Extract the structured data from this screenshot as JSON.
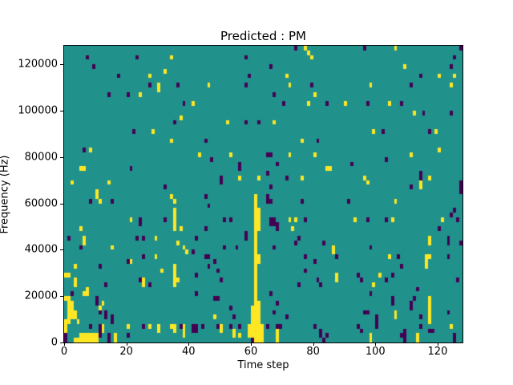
{
  "figure": {
    "title": "Predicted : PM",
    "xlabel": "Time step",
    "ylabel": "Frequency (Hz)"
  },
  "chart_data": {
    "type": "heatmap",
    "title": "Predicted : PM",
    "xlabel": "Time step",
    "ylabel": "Frequency (Hz)",
    "xlim": [
      0,
      128
    ],
    "ylim": [
      0,
      128000
    ],
    "x_ticks": [
      0,
      20,
      40,
      60,
      80,
      100,
      120
    ],
    "y_ticks": [
      0,
      20000,
      40000,
      60000,
      80000,
      100000,
      120000
    ],
    "grid": {
      "cols": 128,
      "rows": 64,
      "legend": "cells are [col,row], row 0 at bottom; value classes: high=yellow, mid=background teal, low=dark purple"
    },
    "colors": {
      "figure_bg": "#ffffff",
      "background": "#21918c",
      "high": "#fde725",
      "low": "#440154",
      "axis": "#000000",
      "text": "#000000"
    },
    "cells_high": [
      [
        34,
        61
      ],
      [
        32,
        58
      ],
      [
        27,
        57
      ],
      [
        30,
        55
      ],
      [
        30,
        54
      ],
      [
        24,
        53
      ],
      [
        41,
        51
      ],
      [
        37,
        48
      ],
      [
        28,
        45
      ],
      [
        34,
        43
      ],
      [
        8,
        41
      ],
      [
        5,
        37
      ],
      [
        6,
        37
      ],
      [
        2,
        34
      ],
      [
        14,
        34
      ],
      [
        10,
        32
      ],
      [
        77,
        63
      ],
      [
        78,
        62
      ],
      [
        79,
        61
      ],
      [
        71,
        57
      ],
      [
        46,
        55
      ],
      [
        72,
        55
      ],
      [
        80,
        53
      ],
      [
        78,
        51
      ],
      [
        52,
        47
      ],
      [
        67,
        47
      ],
      [
        76,
        43
      ],
      [
        43,
        40
      ],
      [
        53,
        40
      ],
      [
        72,
        40
      ],
      [
        80,
        40
      ],
      [
        84,
        37
      ],
      [
        85,
        37
      ],
      [
        56,
        35
      ],
      [
        62,
        35
      ],
      [
        76,
        35
      ],
      [
        106,
        63
      ],
      [
        109,
        59
      ],
      [
        120,
        57
      ],
      [
        125,
        57
      ],
      [
        98,
        55
      ],
      [
        124,
        55
      ],
      [
        90,
        51
      ],
      [
        104,
        51
      ],
      [
        112,
        49
      ],
      [
        99,
        45
      ],
      [
        119,
        45
      ],
      [
        120,
        41
      ],
      [
        111,
        40
      ],
      [
        96,
        35
      ],
      [
        117,
        35
      ],
      [
        97,
        34
      ],
      [
        114,
        34
      ],
      [
        114,
        33
      ],
      [
        10,
        31
      ],
      [
        11,
        30
      ],
      [
        34,
        31
      ],
      [
        35,
        30
      ],
      [
        35,
        28
      ],
      [
        35,
        27
      ],
      [
        35,
        26
      ],
      [
        35,
        25
      ],
      [
        35,
        24
      ],
      [
        37,
        24
      ],
      [
        21,
        26
      ],
      [
        5,
        24
      ],
      [
        6,
        22
      ],
      [
        6,
        21
      ],
      [
        29,
        22
      ],
      [
        36,
        21
      ],
      [
        15,
        20
      ],
      [
        38,
        20
      ],
      [
        39,
        19
      ],
      [
        29,
        18
      ],
      [
        21,
        17
      ],
      [
        3,
        16
      ],
      [
        31,
        15
      ],
      [
        35,
        16
      ],
      [
        35,
        15
      ],
      [
        35,
        14
      ],
      [
        35,
        13
      ],
      [
        35,
        12
      ],
      [
        36,
        13
      ],
      [
        1,
        14
      ],
      [
        0,
        14
      ],
      [
        25,
        13
      ],
      [
        25,
        12
      ],
      [
        3,
        13
      ],
      [
        3,
        12
      ],
      [
        7,
        11
      ],
      [
        7,
        10
      ],
      [
        6,
        10
      ],
      [
        12,
        8
      ],
      [
        11,
        7
      ],
      [
        0,
        9
      ],
      [
        1,
        9
      ],
      [
        1,
        8
      ],
      [
        2,
        8
      ],
      [
        1,
        7
      ],
      [
        2,
        7
      ],
      [
        1,
        6
      ],
      [
        2,
        6
      ],
      [
        1,
        5
      ],
      [
        2,
        5
      ],
      [
        0,
        4
      ],
      [
        1,
        4
      ],
      [
        3,
        6
      ],
      [
        3,
        5
      ],
      [
        4,
        4
      ],
      [
        0,
        3
      ],
      [
        0,
        2
      ],
      [
        12,
        3
      ],
      [
        12,
        2
      ],
      [
        16,
        0
      ],
      [
        16,
        1
      ],
      [
        20,
        3
      ],
      [
        27,
        3
      ],
      [
        30,
        3
      ],
      [
        30,
        2
      ],
      [
        34,
        3
      ],
      [
        35,
        3
      ],
      [
        35,
        2
      ],
      [
        38,
        1
      ],
      [
        38,
        2
      ],
      [
        38,
        3
      ],
      [
        50,
        2
      ],
      [
        50,
        3
      ],
      [
        54,
        1
      ],
      [
        54,
        2
      ],
      [
        3,
        0
      ],
      [
        4,
        0
      ],
      [
        5,
        0
      ],
      [
        5,
        1
      ],
      [
        6,
        0
      ],
      [
        6,
        1
      ],
      [
        7,
        0
      ],
      [
        7,
        1
      ],
      [
        8,
        0
      ],
      [
        8,
        1
      ],
      [
        9,
        0
      ],
      [
        9,
        1
      ],
      [
        10,
        0
      ],
      [
        10,
        1
      ],
      [
        61,
        1
      ],
      [
        61,
        2
      ],
      [
        61,
        3
      ],
      [
        61,
        4
      ],
      [
        61,
        5
      ],
      [
        61,
        6
      ],
      [
        61,
        7
      ],
      [
        61,
        8
      ],
      [
        61,
        9
      ],
      [
        61,
        10
      ],
      [
        61,
        11
      ],
      [
        61,
        12
      ],
      [
        61,
        13
      ],
      [
        61,
        14
      ],
      [
        61,
        15
      ],
      [
        61,
        16
      ],
      [
        61,
        17
      ],
      [
        61,
        18
      ],
      [
        61,
        19
      ],
      [
        61,
        20
      ],
      [
        61,
        21
      ],
      [
        61,
        22
      ],
      [
        61,
        23
      ],
      [
        61,
        24
      ],
      [
        61,
        25
      ],
      [
        61,
        26
      ],
      [
        61,
        27
      ],
      [
        61,
        28
      ],
      [
        61,
        29
      ],
      [
        61,
        30
      ],
      [
        61,
        31
      ],
      [
        62,
        0
      ],
      [
        62,
        1
      ],
      [
        62,
        2
      ],
      [
        62,
        3
      ],
      [
        62,
        4
      ],
      [
        62,
        5
      ],
      [
        62,
        6
      ],
      [
        62,
        7
      ],
      [
        62,
        8
      ],
      [
        62,
        17
      ],
      [
        62,
        18
      ],
      [
        62,
        24
      ],
      [
        62,
        25
      ],
      [
        62,
        26
      ],
      [
        62,
        27
      ],
      [
        62,
        28
      ],
      [
        60,
        1
      ],
      [
        60,
        2
      ],
      [
        60,
        3
      ],
      [
        60,
        4
      ],
      [
        60,
        5
      ],
      [
        60,
        6
      ],
      [
        60,
        7
      ],
      [
        59,
        1
      ],
      [
        59,
        2
      ],
      [
        59,
        3
      ],
      [
        61,
        0
      ],
      [
        63,
        0
      ],
      [
        63,
        1
      ],
      [
        63,
        2
      ],
      [
        63,
        3
      ],
      [
        72,
        26
      ],
      [
        74,
        26
      ],
      [
        73,
        24
      ],
      [
        48,
        5
      ],
      [
        56,
        1
      ],
      [
        68,
        0
      ],
      [
        68,
        1
      ],
      [
        68,
        2
      ],
      [
        98,
        0
      ],
      [
        98,
        1
      ],
      [
        113,
        0
      ],
      [
        113,
        1
      ],
      [
        124,
        3
      ],
      [
        106,
        30
      ],
      [
        93,
        26
      ],
      [
        105,
        26
      ],
      [
        121,
        26
      ],
      [
        117,
        22
      ],
      [
        117,
        21
      ],
      [
        86,
        20
      ],
      [
        86,
        19
      ],
      [
        104,
        18
      ],
      [
        116,
        18
      ],
      [
        116,
        17
      ],
      [
        116,
        16
      ],
      [
        117,
        18
      ],
      [
        87,
        14
      ],
      [
        87,
        13
      ],
      [
        101,
        14
      ],
      [
        99,
        12
      ],
      [
        117,
        9
      ],
      [
        117,
        8
      ],
      [
        117,
        7
      ],
      [
        117,
        6
      ],
      [
        117,
        5
      ],
      [
        117,
        4
      ],
      [
        106,
        6
      ],
      [
        106,
        5
      ]
    ],
    "cells_low": [
      [
        7,
        61
      ],
      [
        9,
        59
      ],
      [
        23,
        61
      ],
      [
        17,
        57
      ],
      [
        27,
        55
      ],
      [
        36,
        55
      ],
      [
        14,
        53
      ],
      [
        20,
        53
      ],
      [
        38,
        51
      ],
      [
        35,
        47
      ],
      [
        22,
        45
      ],
      [
        6,
        41
      ],
      [
        21,
        37
      ],
      [
        32,
        33
      ],
      [
        74,
        63
      ],
      [
        58,
        61
      ],
      [
        66,
        59
      ],
      [
        59,
        57
      ],
      [
        58,
        55
      ],
      [
        79,
        55
      ],
      [
        67,
        53
      ],
      [
        70,
        51
      ],
      [
        84,
        51
      ],
      [
        58,
        47
      ],
      [
        62,
        47
      ],
      [
        45,
        43
      ],
      [
        81,
        43
      ],
      [
        47,
        39
      ],
      [
        65,
        40
      ],
      [
        66,
        40
      ],
      [
        56,
        38
      ],
      [
        56,
        37
      ],
      [
        68,
        38
      ],
      [
        65,
        36
      ],
      [
        71,
        35
      ],
      [
        50,
        35
      ],
      [
        50,
        34
      ],
      [
        66,
        33
      ],
      [
        96,
        63
      ],
      [
        127,
        63
      ],
      [
        125,
        61
      ],
      [
        124,
        59
      ],
      [
        114,
        57
      ],
      [
        111,
        55
      ],
      [
        97,
        51
      ],
      [
        108,
        51
      ],
      [
        115,
        49
      ],
      [
        124,
        49
      ],
      [
        102,
        45
      ],
      [
        117,
        45
      ],
      [
        103,
        39
      ],
      [
        92,
        38
      ],
      [
        114,
        35
      ],
      [
        114,
        36
      ],
      [
        111,
        33
      ],
      [
        127,
        34
      ],
      [
        127,
        33
      ],
      [
        127,
        32
      ],
      [
        8,
        30
      ],
      [
        15,
        30
      ],
      [
        24,
        26
      ],
      [
        32,
        26
      ],
      [
        1,
        22
      ],
      [
        23,
        22
      ],
      [
        25,
        22
      ],
      [
        24,
        25
      ],
      [
        5,
        20
      ],
      [
        41,
        19
      ],
      [
        25,
        18
      ],
      [
        20,
        17
      ],
      [
        11,
        16
      ],
      [
        24,
        13
      ],
      [
        27,
        12
      ],
      [
        13,
        12
      ],
      [
        2,
        10
      ],
      [
        10,
        9
      ],
      [
        10,
        8
      ],
      [
        11,
        6
      ],
      [
        13,
        6
      ],
      [
        13,
        5
      ],
      [
        15,
        5
      ],
      [
        15,
        4
      ],
      [
        8,
        3
      ],
      [
        11,
        3
      ],
      [
        11,
        2
      ],
      [
        11,
        1
      ],
      [
        14,
        0
      ],
      [
        14,
        1
      ],
      [
        20,
        1
      ],
      [
        25,
        3
      ],
      [
        37,
        3
      ],
      [
        41,
        2
      ],
      [
        41,
        3
      ],
      [
        42,
        2
      ],
      [
        42,
        3
      ],
      [
        44,
        3
      ],
      [
        49,
        3
      ],
      [
        56,
        3
      ],
      [
        60,
        0
      ],
      [
        0,
        0
      ],
      [
        0,
        1
      ],
      [
        45,
        31
      ],
      [
        65,
        31
      ],
      [
        65,
        30
      ],
      [
        66,
        30
      ],
      [
        46,
        29
      ],
      [
        76,
        30
      ],
      [
        51,
        26
      ],
      [
        53,
        26
      ],
      [
        66,
        26
      ],
      [
        66,
        25
      ],
      [
        67,
        26
      ],
      [
        67,
        25
      ],
      [
        68,
        25
      ],
      [
        68,
        24
      ],
      [
        77,
        26
      ],
      [
        45,
        24
      ],
      [
        58,
        23
      ],
      [
        58,
        22
      ],
      [
        42,
        22
      ],
      [
        51,
        20
      ],
      [
        55,
        20
      ],
      [
        67,
        20
      ],
      [
        75,
        22
      ],
      [
        74,
        21
      ],
      [
        83,
        21
      ],
      [
        45,
        18
      ],
      [
        46,
        18
      ],
      [
        48,
        17
      ],
      [
        46,
        16
      ],
      [
        77,
        18
      ],
      [
        80,
        17
      ],
      [
        49,
        15
      ],
      [
        42,
        14
      ],
      [
        77,
        15
      ],
      [
        81,
        13
      ],
      [
        50,
        13
      ],
      [
        75,
        12
      ],
      [
        82,
        12
      ],
      [
        42,
        10
      ],
      [
        48,
        9
      ],
      [
        49,
        9
      ],
      [
        66,
        10
      ],
      [
        68,
        8
      ],
      [
        53,
        7
      ],
      [
        54,
        5
      ],
      [
        53,
        3
      ],
      [
        67,
        6
      ],
      [
        71,
        5
      ],
      [
        68,
        3
      ],
      [
        82,
        1
      ],
      [
        82,
        2
      ],
      [
        84,
        1
      ],
      [
        83,
        0
      ],
      [
        65,
        3
      ],
      [
        69,
        3
      ],
      [
        80,
        3
      ],
      [
        91,
        30
      ],
      [
        125,
        28
      ],
      [
        124,
        27
      ],
      [
        126,
        26
      ],
      [
        97,
        26
      ],
      [
        103,
        26
      ],
      [
        120,
        24
      ],
      [
        123,
        22
      ],
      [
        123,
        21
      ],
      [
        127,
        21
      ],
      [
        98,
        20
      ],
      [
        87,
        18
      ],
      [
        107,
        18
      ],
      [
        123,
        18
      ],
      [
        108,
        16
      ],
      [
        94,
        14
      ],
      [
        95,
        13
      ],
      [
        103,
        13
      ],
      [
        105,
        14
      ],
      [
        126,
        13
      ],
      [
        98,
        10
      ],
      [
        113,
        11
      ],
      [
        112,
        9
      ],
      [
        105,
        9
      ],
      [
        105,
        8
      ],
      [
        111,
        8
      ],
      [
        111,
        7
      ],
      [
        96,
        6
      ],
      [
        97,
        6
      ],
      [
        100,
        5
      ],
      [
        100,
        4
      ],
      [
        114,
        5
      ],
      [
        123,
        6
      ],
      [
        95,
        2
      ],
      [
        94,
        3
      ],
      [
        100,
        3
      ],
      [
        108,
        1
      ],
      [
        109,
        0
      ],
      [
        109,
        1
      ],
      [
        109,
        2
      ],
      [
        114,
        3
      ],
      [
        117,
        2
      ],
      [
        118,
        2
      ],
      [
        125,
        0
      ],
      [
        125,
        1
      ]
    ]
  }
}
